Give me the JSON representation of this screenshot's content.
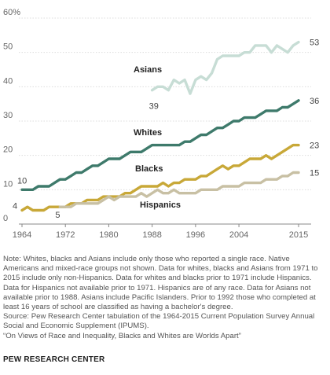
{
  "chart_data": {
    "type": "line",
    "title": "",
    "xlabel": "",
    "ylabel": "",
    "xlim": [
      1964,
      2015
    ],
    "ylim": [
      0,
      60
    ],
    "grid": true,
    "x_ticks": [
      "1964",
      "1972",
      "1980",
      "1988",
      "1996",
      "2004",
      "2015"
    ],
    "y_ticks": [
      "0",
      "10",
      "20",
      "30",
      "40",
      "50",
      "60%"
    ],
    "series": [
      {
        "name": "Asians",
        "color": "#c7ddd5",
        "x": [
          1988,
          1989,
          1990,
          1991,
          1992,
          1993,
          1994,
          1995,
          1996,
          1997,
          1998,
          1999,
          2000,
          2001,
          2002,
          2003,
          2004,
          2005,
          2006,
          2007,
          2008,
          2009,
          2010,
          2011,
          2012,
          2013,
          2014,
          2015
        ],
        "values": [
          39,
          40,
          40,
          39,
          42,
          41,
          42,
          38,
          42,
          43,
          42,
          44,
          48,
          49,
          49,
          49,
          49,
          50,
          50,
          52,
          52,
          52,
          50,
          52,
          51,
          50,
          52,
          53
        ],
        "start_label": "39",
        "end_label": "53"
      },
      {
        "name": "Whites",
        "color": "#3e7a6b",
        "x": [
          1964,
          1965,
          1966,
          1967,
          1968,
          1969,
          1970,
          1971,
          1972,
          1973,
          1974,
          1975,
          1976,
          1977,
          1978,
          1979,
          1980,
          1981,
          1982,
          1983,
          1984,
          1985,
          1986,
          1987,
          1988,
          1989,
          1990,
          1991,
          1992,
          1993,
          1994,
          1995,
          1996,
          1997,
          1998,
          1999,
          2000,
          2001,
          2002,
          2003,
          2004,
          2005,
          2006,
          2007,
          2008,
          2009,
          2010,
          2011,
          2012,
          2013,
          2014,
          2015
        ],
        "values": [
          10,
          10,
          10,
          11,
          11,
          11,
          12,
          13,
          13,
          14,
          15,
          15,
          16,
          17,
          17,
          18,
          19,
          19,
          19,
          20,
          21,
          21,
          21,
          22,
          23,
          23,
          23,
          23,
          23,
          23,
          24,
          24,
          25,
          26,
          26,
          27,
          28,
          28,
          29,
          30,
          30,
          31,
          31,
          31,
          32,
          33,
          33,
          33,
          34,
          34,
          35,
          36
        ],
        "start_label": "10",
        "end_label": "36"
      },
      {
        "name": "Blacks",
        "color": "#c8a838",
        "x": [
          1964,
          1965,
          1966,
          1967,
          1968,
          1969,
          1970,
          1971,
          1972,
          1973,
          1974,
          1975,
          1976,
          1977,
          1978,
          1979,
          1980,
          1981,
          1982,
          1983,
          1984,
          1985,
          1986,
          1987,
          1988,
          1989,
          1990,
          1991,
          1992,
          1993,
          1994,
          1995,
          1996,
          1997,
          1998,
          1999,
          2000,
          2001,
          2002,
          2003,
          2004,
          2005,
          2006,
          2007,
          2008,
          2009,
          2010,
          2011,
          2012,
          2013,
          2014,
          2015
        ],
        "values": [
          4,
          5,
          4,
          4,
          4,
          5,
          5,
          5,
          5,
          6,
          6,
          6,
          7,
          7,
          7,
          8,
          8,
          8,
          8,
          9,
          9,
          10,
          11,
          11,
          11,
          11,
          12,
          11,
          12,
          12,
          13,
          13,
          13,
          14,
          14,
          15,
          16,
          17,
          16,
          17,
          17,
          18,
          19,
          19,
          19,
          20,
          19,
          20,
          21,
          22,
          23,
          23
        ],
        "start_label": "4",
        "end_label": "23"
      },
      {
        "name": "Hispanics",
        "color": "#c8c0a4",
        "x": [
          1971,
          1972,
          1973,
          1974,
          1975,
          1976,
          1977,
          1978,
          1979,
          1980,
          1981,
          1982,
          1983,
          1984,
          1985,
          1986,
          1987,
          1988,
          1989,
          1990,
          1991,
          1992,
          1993,
          1994,
          1995,
          1996,
          1997,
          1998,
          1999,
          2000,
          2001,
          2002,
          2003,
          2004,
          2005,
          2006,
          2007,
          2008,
          2009,
          2010,
          2011,
          2012,
          2013,
          2014,
          2015
        ],
        "values": [
          5,
          5,
          5,
          6,
          6,
          6,
          6,
          6,
          7,
          8,
          7,
          8,
          8,
          8,
          8,
          9,
          8,
          9,
          10,
          9,
          9,
          10,
          9,
          9,
          9,
          9,
          10,
          10,
          10,
          10,
          11,
          11,
          11,
          11,
          12,
          12,
          12,
          12,
          13,
          13,
          13,
          14,
          14,
          15,
          15
        ],
        "start_label": "5",
        "end_label": "15"
      }
    ]
  },
  "notes": [
    "Note: Whites, blacks and Asians include only those who reported a single race. Native Americans and mixed-race groups not shown. Data for whites, blacks and Asians from 1971 to 2015 include only non-Hispanics. Data for whites and blacks prior to 1971 include Hispanics. Data for Hispanics not available prior to 1971. Hispanics are of any race. Data for Asians not available prior to 1988. Asians include Pacific Islanders. Prior to 1992 those who completed at least 16 years of school are classified as having a bachelor's degree.",
    "Source: Pew Research Center tabulation of the 1964-2015 Current Population Survey Annual Social and Economic Supplement (IPUMS).",
    "“On Views of Race and Inequality, Blacks and Whites are Worlds Apart”"
  ],
  "credit": "PEW RESEARCH CENTER"
}
